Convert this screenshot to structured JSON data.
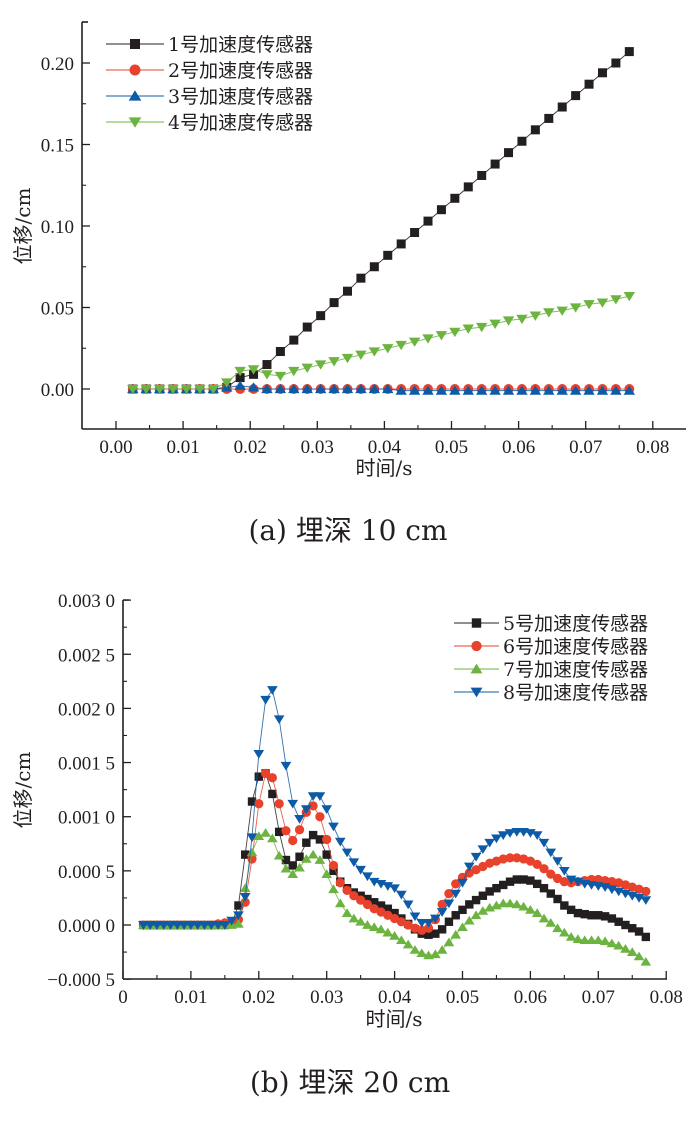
{
  "chart_data": [
    {
      "type": "line",
      "caption": "(a) 埋深 10 cm",
      "xlabel": "时间/s",
      "ylabel": "位移/cm",
      "xlim": [
        -0.004,
        0.085
      ],
      "ylim": [
        -0.025,
        0.225
      ],
      "xticks": [
        0.0,
        0.01,
        0.02,
        0.03,
        0.04,
        0.05,
        0.06,
        0.07,
        0.08
      ],
      "xtick_labels": [
        "0.00",
        "0.01",
        "0.02",
        "0.03",
        "0.04",
        "0.05",
        "0.06",
        "0.07",
        "0.08"
      ],
      "yticks": [
        0.0,
        0.05,
        0.1,
        0.15,
        0.2
      ],
      "ytick_labels": [
        "0.00",
        "0.05",
        "0.10",
        "0.15",
        "0.20"
      ],
      "legend_position": "top-left",
      "x": [
        0.0025,
        0.0045,
        0.0065,
        0.0085,
        0.0105,
        0.0125,
        0.0145,
        0.0165,
        0.0185,
        0.0205,
        0.0225,
        0.0245,
        0.0265,
        0.0285,
        0.0305,
        0.0325,
        0.0345,
        0.0365,
        0.0385,
        0.0405,
        0.0425,
        0.0445,
        0.0465,
        0.0485,
        0.0505,
        0.0525,
        0.0545,
        0.0565,
        0.0585,
        0.0605,
        0.0625,
        0.0645,
        0.0665,
        0.0685,
        0.0705,
        0.0725,
        0.0745,
        0.0765
      ],
      "series": [
        {
          "name": "1号加速度传感器",
          "color": "#231f20",
          "marker": "square",
          "values": [
            0,
            0,
            0,
            0,
            0,
            0,
            0,
            0.001,
            0.007,
            0.009,
            0.015,
            0.023,
            0.03,
            0.038,
            0.045,
            0.053,
            0.06,
            0.068,
            0.075,
            0.082,
            0.089,
            0.096,
            0.103,
            0.11,
            0.117,
            0.124,
            0.131,
            0.138,
            0.145,
            0.152,
            0.159,
            0.166,
            0.173,
            0.18,
            0.187,
            0.194,
            0.2,
            0.207
          ]
        },
        {
          "name": "2号加速度传感器",
          "color": "#e8412c",
          "marker": "circle",
          "values": [
            0,
            0,
            0,
            0,
            0,
            0,
            0,
            0,
            0,
            0,
            0,
            0,
            0,
            0,
            0,
            0,
            0,
            0,
            0,
            0,
            0,
            0,
            0,
            0,
            0,
            0,
            0,
            0,
            0,
            0,
            0,
            0,
            0,
            0,
            0,
            0,
            0,
            0
          ]
        },
        {
          "name": "3号加速度传感器",
          "color": "#0d5ba6",
          "marker": "triangle-up",
          "values": [
            0,
            0,
            0,
            0,
            0,
            0,
            0,
            0.001,
            0.002,
            0.001,
            0,
            0,
            0,
            0,
            0,
            0,
            0,
            0,
            0,
            0,
            -0.001,
            -0.001,
            -0.001,
            -0.001,
            -0.001,
            -0.001,
            -0.001,
            -0.001,
            -0.001,
            -0.001,
            -0.001,
            -0.001,
            -0.001,
            -0.001,
            -0.001,
            -0.001,
            -0.001,
            -0.001
          ]
        },
        {
          "name": "4号加速度传感器",
          "color": "#6db33f",
          "marker": "triangle-down",
          "values": [
            0,
            0,
            0,
            0,
            0,
            0,
            0,
            0.004,
            0.011,
            0.012,
            0.009,
            0.008,
            0.011,
            0.013,
            0.015,
            0.017,
            0.019,
            0.021,
            0.023,
            0.025,
            0.027,
            0.029,
            0.031,
            0.033,
            0.035,
            0.037,
            0.038,
            0.04,
            0.042,
            0.043,
            0.045,
            0.047,
            0.048,
            0.05,
            0.052,
            0.053,
            0.055,
            0.057
          ]
        }
      ]
    },
    {
      "type": "line",
      "caption": "(b) 埋深 20 cm",
      "xlabel": "时间/s",
      "ylabel": "位移/cm",
      "xlim": [
        0,
        0.08
      ],
      "ylim": [
        -0.0005,
        0.003
      ],
      "xticks": [
        0,
        0.01,
        0.02,
        0.03,
        0.04,
        0.05,
        0.06,
        0.07,
        0.08
      ],
      "xtick_labels": [
        "0",
        "0.01",
        "0.02",
        "0.03",
        "0.04",
        "0.05",
        "0.06",
        "0.07",
        "0.08"
      ],
      "yticks": [
        -0.0005,
        0,
        0.0005,
        0.001,
        0.0015,
        0.002,
        0.0025,
        0.003
      ],
      "ytick_labels": [
        "−0.000 5",
        "0.000 0",
        "0.000 5",
        "0.001 0",
        "0.001 5",
        "0.002 0",
        "0.002 5",
        "0.003 0"
      ],
      "legend_position": "top-right",
      "x": [
        0.003,
        0.004,
        0.005,
        0.006,
        0.007,
        0.008,
        0.009,
        0.01,
        0.011,
        0.012,
        0.013,
        0.014,
        0.015,
        0.016,
        0.017,
        0.018,
        0.019,
        0.02,
        0.021,
        0.022,
        0.023,
        0.024,
        0.025,
        0.026,
        0.027,
        0.028,
        0.029,
        0.03,
        0.031,
        0.032,
        0.033,
        0.034,
        0.035,
        0.036,
        0.037,
        0.038,
        0.039,
        0.04,
        0.041,
        0.042,
        0.043,
        0.044,
        0.045,
        0.046,
        0.047,
        0.048,
        0.049,
        0.05,
        0.051,
        0.052,
        0.053,
        0.054,
        0.055,
        0.056,
        0.057,
        0.058,
        0.059,
        0.06,
        0.061,
        0.062,
        0.063,
        0.064,
        0.065,
        0.066,
        0.067,
        0.068,
        0.069,
        0.07,
        0.071,
        0.072,
        0.073,
        0.074,
        0.075,
        0.076,
        0.077
      ],
      "series": [
        {
          "name": "5号加速度传感器",
          "color": "#231f20",
          "marker": "square",
          "values": [
            0,
            0,
            0,
            0,
            0,
            0,
            0,
            0,
            0,
            0,
            0,
            0,
            0,
            1e-05,
            0.00018,
            0.00065,
            0.00114,
            0.00137,
            0.0014,
            0.00121,
            0.00086,
            0.0006,
            0.00055,
            0.00063,
            0.00076,
            0.00083,
            0.00079,
            0.00065,
            0.0005,
            0.0004,
            0.00034,
            0.0003,
            0.00027,
            0.00024,
            0.00021,
            0.00018,
            0.00015,
            0.00011,
            6e-05,
            1e-05,
            -4e-05,
            -8e-05,
            -9e-05,
            -8e-05,
            -4e-05,
            3e-05,
            9e-05,
            0.00014,
            0.00019,
            0.00023,
            0.00027,
            0.00031,
            0.00034,
            0.00037,
            0.0004,
            0.00042,
            0.00042,
            0.00041,
            0.00038,
            0.00034,
            0.00029,
            0.00024,
            0.00018,
            0.00014,
            0.00011,
            0.0001,
            9e-05,
            9e-05,
            8e-05,
            6e-05,
            3e-05,
            0.0,
            -3e-05,
            -6e-05,
            -0.00011
          ]
        },
        {
          "name": "6号加速度传感器",
          "color": "#e8412c",
          "marker": "circle",
          "values": [
            0,
            0,
            0,
            0,
            0,
            0,
            0,
            0,
            0,
            0,
            0,
            1e-05,
            2e-05,
            3e-05,
            5e-05,
            0.00021,
            0.00061,
            0.00112,
            0.0014,
            0.00136,
            0.00112,
            0.00087,
            0.00078,
            0.00088,
            0.00104,
            0.0011,
            0.001,
            0.00079,
            0.00055,
            0.00039,
            0.00032,
            0.00027,
            0.00023,
            0.00019,
            0.00015,
            0.00012,
            9e-05,
            6e-05,
            3e-05,
            0.0,
            -3e-05,
            -5e-05,
            -3e-05,
            5e-05,
            0.00019,
            0.00029,
            0.00038,
            0.00044,
            0.00048,
            0.00051,
            0.00054,
            0.00057,
            0.00059,
            0.00061,
            0.00062,
            0.00062,
            0.00061,
            0.00059,
            0.00056,
            0.00052,
            0.00047,
            0.00043,
            0.0004,
            0.00039,
            0.0004,
            0.00041,
            0.00042,
            0.00042,
            0.00041,
            0.0004,
            0.00039,
            0.00037,
            0.00035,
            0.00033,
            0.00031
          ]
        },
        {
          "name": "7号加速度传感器",
          "color": "#6db33f",
          "marker": "triangle-up",
          "values": [
            0,
            0,
            0,
            0,
            0,
            0,
            0,
            0,
            0,
            0,
            0,
            0,
            0,
            0,
            1e-05,
            0.00034,
            0.00067,
            0.00082,
            0.00085,
            0.0008,
            0.00064,
            0.00052,
            0.00047,
            0.00053,
            0.00061,
            0.00065,
            0.0006,
            0.00047,
            0.00033,
            0.0002,
            0.00011,
            6e-05,
            3e-05,
            0.0,
            -2e-05,
            -4e-05,
            -7e-05,
            -0.0001,
            -0.00014,
            -0.00018,
            -0.00023,
            -0.00026,
            -0.00028,
            -0.00027,
            -0.00023,
            -0.00016,
            -9e-05,
            -2e-05,
            4e-05,
            9e-05,
            0.00013,
            0.00016,
            0.00018,
            0.0002,
            0.0002,
            0.00019,
            0.00017,
            0.00014,
            0.00011,
            6e-05,
            2e-05,
            -3e-05,
            -7e-05,
            -0.00011,
            -0.00013,
            -0.00014,
            -0.00014,
            -0.00014,
            -0.00015,
            -0.00017,
            -0.00019,
            -0.00022,
            -0.00025,
            -0.00029,
            -0.00034
          ]
        },
        {
          "name": "8号加速度传感器",
          "color": "#0d5ba6",
          "marker": "triangle-down",
          "values": [
            0,
            0,
            0,
            0,
            0,
            0,
            0,
            0,
            0,
            0,
            0,
            0,
            0,
            4e-05,
            9e-05,
            0.00026,
            0.00081,
            0.00158,
            0.00208,
            0.00217,
            0.0019,
            0.00147,
            0.00112,
            0.00098,
            0.00107,
            0.00119,
            0.00119,
            0.00107,
            0.00091,
            0.00077,
            0.00067,
            0.00058,
            0.00051,
            0.00045,
            0.0004,
            0.00038,
            0.00036,
            0.00034,
            0.00028,
            0.00019,
            8e-05,
            2e-05,
            2e-05,
            6e-05,
            0.00012,
            0.0002,
            0.00029,
            0.00039,
            0.00054,
            0.00063,
            0.0007,
            0.00076,
            0.0008,
            0.00083,
            0.00085,
            0.00086,
            0.00086,
            0.00085,
            0.00083,
            0.00076,
            0.00067,
            0.00059,
            0.0005,
            0.00042,
            0.0004,
            0.00038,
            0.00037,
            0.00036,
            0.00035,
            0.00033,
            0.00031,
            0.00029,
            0.00027,
            0.00025,
            0.00023
          ]
        }
      ]
    }
  ]
}
